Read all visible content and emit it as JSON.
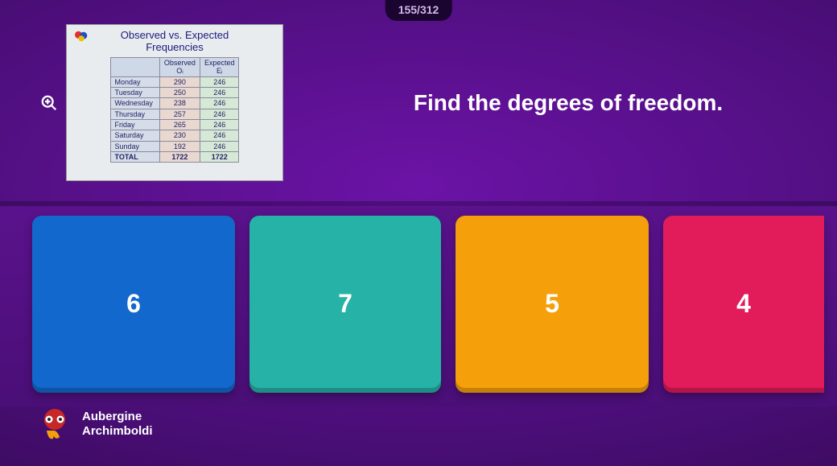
{
  "progress": {
    "text": "155/312"
  },
  "slide": {
    "title_line1": "Observed vs. Expected",
    "title_line2": "Frequencies",
    "table": {
      "headers": [
        "",
        "Observed\nOᵢ",
        "Expected\nEᵢ"
      ],
      "rows": [
        [
          "Monday",
          "290",
          "246"
        ],
        [
          "Tuesday",
          "250",
          "246"
        ],
        [
          "Wednesday",
          "238",
          "246"
        ],
        [
          "Thursday",
          "257",
          "246"
        ],
        [
          "Friday",
          "265",
          "246"
        ],
        [
          "Saturday",
          "230",
          "246"
        ],
        [
          "Sunday",
          "192",
          "246"
        ]
      ],
      "total": [
        "TOTAL",
        "1722",
        "1722"
      ]
    }
  },
  "question": "Find the degrees of freedom.",
  "answers": [
    {
      "label": "6",
      "color": "#1368ce"
    },
    {
      "label": "7",
      "color": "#26b2a6"
    },
    {
      "label": "5",
      "color": "#f5a00a"
    },
    {
      "label": "4",
      "color": "#e21b5a"
    }
  ],
  "player": {
    "line1": "Aubergine",
    "line2": "Archimboldi"
  },
  "colors": {
    "background_center": "#6b13a6",
    "background_edge": "#2d0849",
    "pill_bg": "#1a0530"
  }
}
